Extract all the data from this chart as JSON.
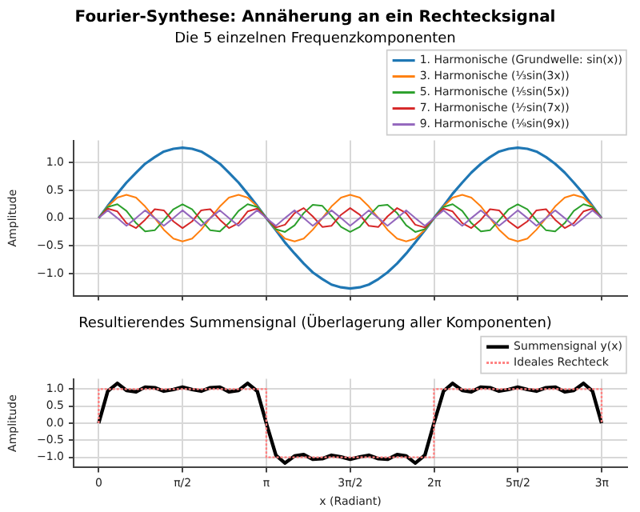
{
  "chart_data": [
    {
      "type": "line",
      "title": "Fourier-Synthese: Annäherung an ein Rechtecksignal",
      "subtitle": "Die 5 einzelnen Frequenzkomponenten",
      "ylabel": "Amplitude",
      "x": [
        0,
        0.17,
        0.35,
        0.52,
        0.7,
        0.87,
        1.05,
        1.22,
        1.4,
        1.57,
        1.75,
        1.92,
        2.09,
        2.27,
        2.44,
        2.62,
        2.79,
        2.97,
        3.14,
        3.32,
        3.49,
        3.67,
        3.84,
        4.01,
        4.19,
        4.36,
        4.54,
        4.71,
        4.89,
        5.06,
        5.24,
        5.41,
        5.59,
        5.76,
        5.93,
        6.11,
        6.28,
        6.46,
        6.63,
        6.81,
        6.98,
        7.16,
        7.33,
        7.5,
        7.68,
        7.85,
        8.03,
        8.2,
        8.38,
        8.55,
        8.73,
        8.9,
        9.08,
        9.25,
        9.42
      ],
      "series": [
        {
          "name": "1. Harmonische (Grundwelle: sin(x))",
          "color": "#1f77b4",
          "values": [
            0,
            0.22,
            0.44,
            0.64,
            0.82,
            0.98,
            1.1,
            1.2,
            1.25,
            1.27,
            1.25,
            1.2,
            1.1,
            0.98,
            0.82,
            0.64,
            0.44,
            0.22,
            0,
            -0.22,
            -0.44,
            -0.64,
            -0.82,
            -0.98,
            -1.1,
            -1.2,
            -1.25,
            -1.27,
            -1.25,
            -1.2,
            -1.1,
            -0.98,
            -0.82,
            -0.64,
            -0.44,
            -0.22,
            0,
            0.22,
            0.44,
            0.64,
            0.82,
            0.98,
            1.1,
            1.2,
            1.25,
            1.27,
            1.25,
            1.2,
            1.1,
            0.98,
            0.82,
            0.64,
            0.44,
            0.22,
            0
          ]
        },
        {
          "name": "3. Harmonische (⅓sin(3x))",
          "color": "#ff7f0e",
          "values": [
            0,
            0.21,
            0.37,
            0.42,
            0.37,
            0.21,
            0,
            -0.21,
            -0.37,
            -0.42,
            -0.37,
            -0.21,
            0,
            0.21,
            0.37,
            0.42,
            0.37,
            0.21,
            0,
            -0.21,
            -0.37,
            -0.42,
            -0.37,
            -0.21,
            0,
            0.21,
            0.37,
            0.42,
            0.37,
            0.21,
            0,
            -0.21,
            -0.37,
            -0.42,
            -0.37,
            -0.21,
            0,
            0.21,
            0.37,
            0.42,
            0.37,
            0.21,
            0,
            -0.21,
            -0.37,
            -0.42,
            -0.37,
            -0.21,
            0,
            0.21,
            0.37,
            0.42,
            0.37,
            0.21,
            0
          ]
        },
        {
          "name": "5. Harmonische (⅕sin(5x))",
          "color": "#2ca02c",
          "values": [
            0,
            0.2,
            0.25,
            0.13,
            -0.09,
            -0.24,
            -0.22,
            -0.04,
            0.16,
            0.25,
            0.16,
            -0.04,
            -0.22,
            -0.24,
            -0.09,
            0.13,
            0.25,
            0.2,
            0,
            -0.2,
            -0.25,
            -0.13,
            0.09,
            0.24,
            0.22,
            0.04,
            -0.16,
            -0.25,
            -0.16,
            0.04,
            0.22,
            0.24,
            0.09,
            -0.13,
            -0.25,
            -0.2,
            0,
            0.2,
            0.25,
            0.13,
            -0.09,
            -0.24,
            -0.22,
            -0.04,
            0.16,
            0.25,
            0.16,
            -0.04,
            -0.22,
            -0.24,
            -0.09,
            0.13,
            0.25,
            0.2,
            0
          ]
        },
        {
          "name": "7. Harmonische (⅐sin(7x))",
          "color": "#d62728",
          "values": [
            0,
            0.17,
            0.12,
            -0.09,
            -0.18,
            -0.03,
            0.16,
            0.14,
            -0.06,
            -0.18,
            -0.06,
            0.14,
            0.16,
            -0.03,
            -0.18,
            -0.09,
            0.12,
            0.17,
            0,
            -0.17,
            -0.12,
            0.09,
            0.18,
            0.03,
            -0.16,
            -0.14,
            0.06,
            0.18,
            0.06,
            -0.14,
            -0.16,
            0.03,
            0.18,
            0.09,
            -0.12,
            -0.17,
            0,
            0.17,
            0.12,
            -0.09,
            -0.18,
            -0.03,
            0.16,
            0.14,
            -0.06,
            -0.18,
            -0.06,
            0.14,
            0.16,
            -0.03,
            -0.18,
            -0.09,
            0.12,
            0.17,
            0
          ]
        },
        {
          "name": "9. Harmonische (⅑sin(9x))",
          "color": "#9467bd",
          "values": [
            0,
            0.14,
            0,
            -0.14,
            0,
            0.14,
            0,
            -0.14,
            0,
            0.14,
            0,
            -0.14,
            0,
            0.14,
            0,
            -0.14,
            0,
            0.14,
            0,
            -0.14,
            0,
            0.14,
            0,
            -0.14,
            0,
            0.14,
            0,
            -0.14,
            0,
            0.14,
            0,
            -0.14,
            0,
            0.14,
            0,
            -0.14,
            0,
            0.14,
            0,
            -0.14,
            0,
            0.14,
            0,
            -0.14,
            0,
            0.14,
            0,
            -0.14,
            0,
            0.14,
            0,
            -0.14,
            0,
            0.14,
            0
          ]
        }
      ],
      "xlim": [
        -0.47,
        9.9
      ],
      "xticks": [
        {
          "value": 0,
          "label": null
        },
        {
          "value": 1.571,
          "label": null
        },
        {
          "value": 3.142,
          "label": null
        },
        {
          "value": 4.712,
          "label": null
        },
        {
          "value": 6.283,
          "label": null
        },
        {
          "value": 7.854,
          "label": null
        },
        {
          "value": 9.425,
          "label": null
        }
      ],
      "ylim": [
        -1.4,
        1.4
      ],
      "yticks": [
        {
          "value": -1,
          "label": "−1.0"
        },
        {
          "value": -0.5,
          "label": "−0.5"
        },
        {
          "value": 0,
          "label": "0.0"
        },
        {
          "value": 0.5,
          "label": "0.5"
        },
        {
          "value": 1,
          "label": "1.0"
        }
      ],
      "grid": true,
      "legend": "top right",
      "tick_labels": "y"
    },
    {
      "type": "line",
      "title": "Resultierendes Summensignal (Überlagerung aller Komponenten)",
      "xlabel": "x (Radiant)",
      "ylabel": "Amplitude",
      "x": [
        0,
        0.17,
        0.35,
        0.52,
        0.7,
        0.87,
        1.05,
        1.22,
        1.4,
        1.57,
        1.75,
        1.92,
        2.09,
        2.27,
        2.44,
        2.62,
        2.79,
        2.97,
        3.14,
        3.32,
        3.49,
        3.67,
        3.84,
        4.01,
        4.19,
        4.36,
        4.54,
        4.71,
        4.89,
        5.06,
        5.24,
        5.41,
        5.59,
        5.76,
        5.93,
        6.11,
        6.28,
        6.46,
        6.63,
        6.81,
        6.98,
        7.16,
        7.33,
        7.5,
        7.68,
        7.85,
        8.03,
        8.2,
        8.38,
        8.55,
        8.73,
        8.9,
        9.08,
        9.25,
        9.42
      ],
      "series": [
        {
          "name": "Summensignal y(x)",
          "color": "#000000",
          "values": [
            0,
            0.94,
            1.17,
            0.96,
            0.92,
            1.06,
            1.04,
            0.94,
            0.99,
            1.06,
            0.99,
            0.94,
            1.04,
            1.06,
            0.92,
            0.96,
            1.17,
            0.94,
            0,
            -0.94,
            -1.17,
            -0.96,
            -0.92,
            -1.06,
            -1.04,
            -0.94,
            -0.99,
            -1.06,
            -0.99,
            -0.94,
            -1.04,
            -1.06,
            -0.92,
            -0.96,
            -1.17,
            -0.94,
            0,
            0.94,
            1.17,
            0.96,
            0.92,
            1.06,
            1.04,
            0.94,
            0.99,
            1.06,
            0.99,
            0.94,
            1.04,
            1.06,
            0.92,
            0.96,
            1.17,
            0.94,
            0
          ]
        },
        {
          "name": "Ideales Rechteck",
          "color": "#ff8080",
          "line_style": "dotted",
          "x": [
            0,
            0,
            3.14,
            3.14,
            6.28,
            6.28,
            9.42,
            9.42
          ],
          "values": [
            0,
            1,
            1,
            -1,
            -1,
            1,
            1,
            0
          ]
        }
      ],
      "xlim": [
        -0.47,
        9.9
      ],
      "xticks": [
        {
          "value": 0,
          "label": "0"
        },
        {
          "value": 1.571,
          "label": "π/2"
        },
        {
          "value": 3.142,
          "label": "π"
        },
        {
          "value": 4.712,
          "label": "3π/2"
        },
        {
          "value": 6.283,
          "label": "2π"
        },
        {
          "value": 7.854,
          "label": "5π/2"
        },
        {
          "value": 9.425,
          "label": "3π"
        }
      ],
      "ylim": [
        -1.3,
        1.3
      ],
      "yticks": [
        {
          "value": -1,
          "label": "−1.0"
        },
        {
          "value": -0.5,
          "label": "−0.5"
        },
        {
          "value": 0,
          "label": "0.0"
        },
        {
          "value": 0.5,
          "label": "0.5"
        },
        {
          "value": 1,
          "label": "1.0"
        }
      ],
      "grid": true,
      "legend": "top right"
    }
  ]
}
